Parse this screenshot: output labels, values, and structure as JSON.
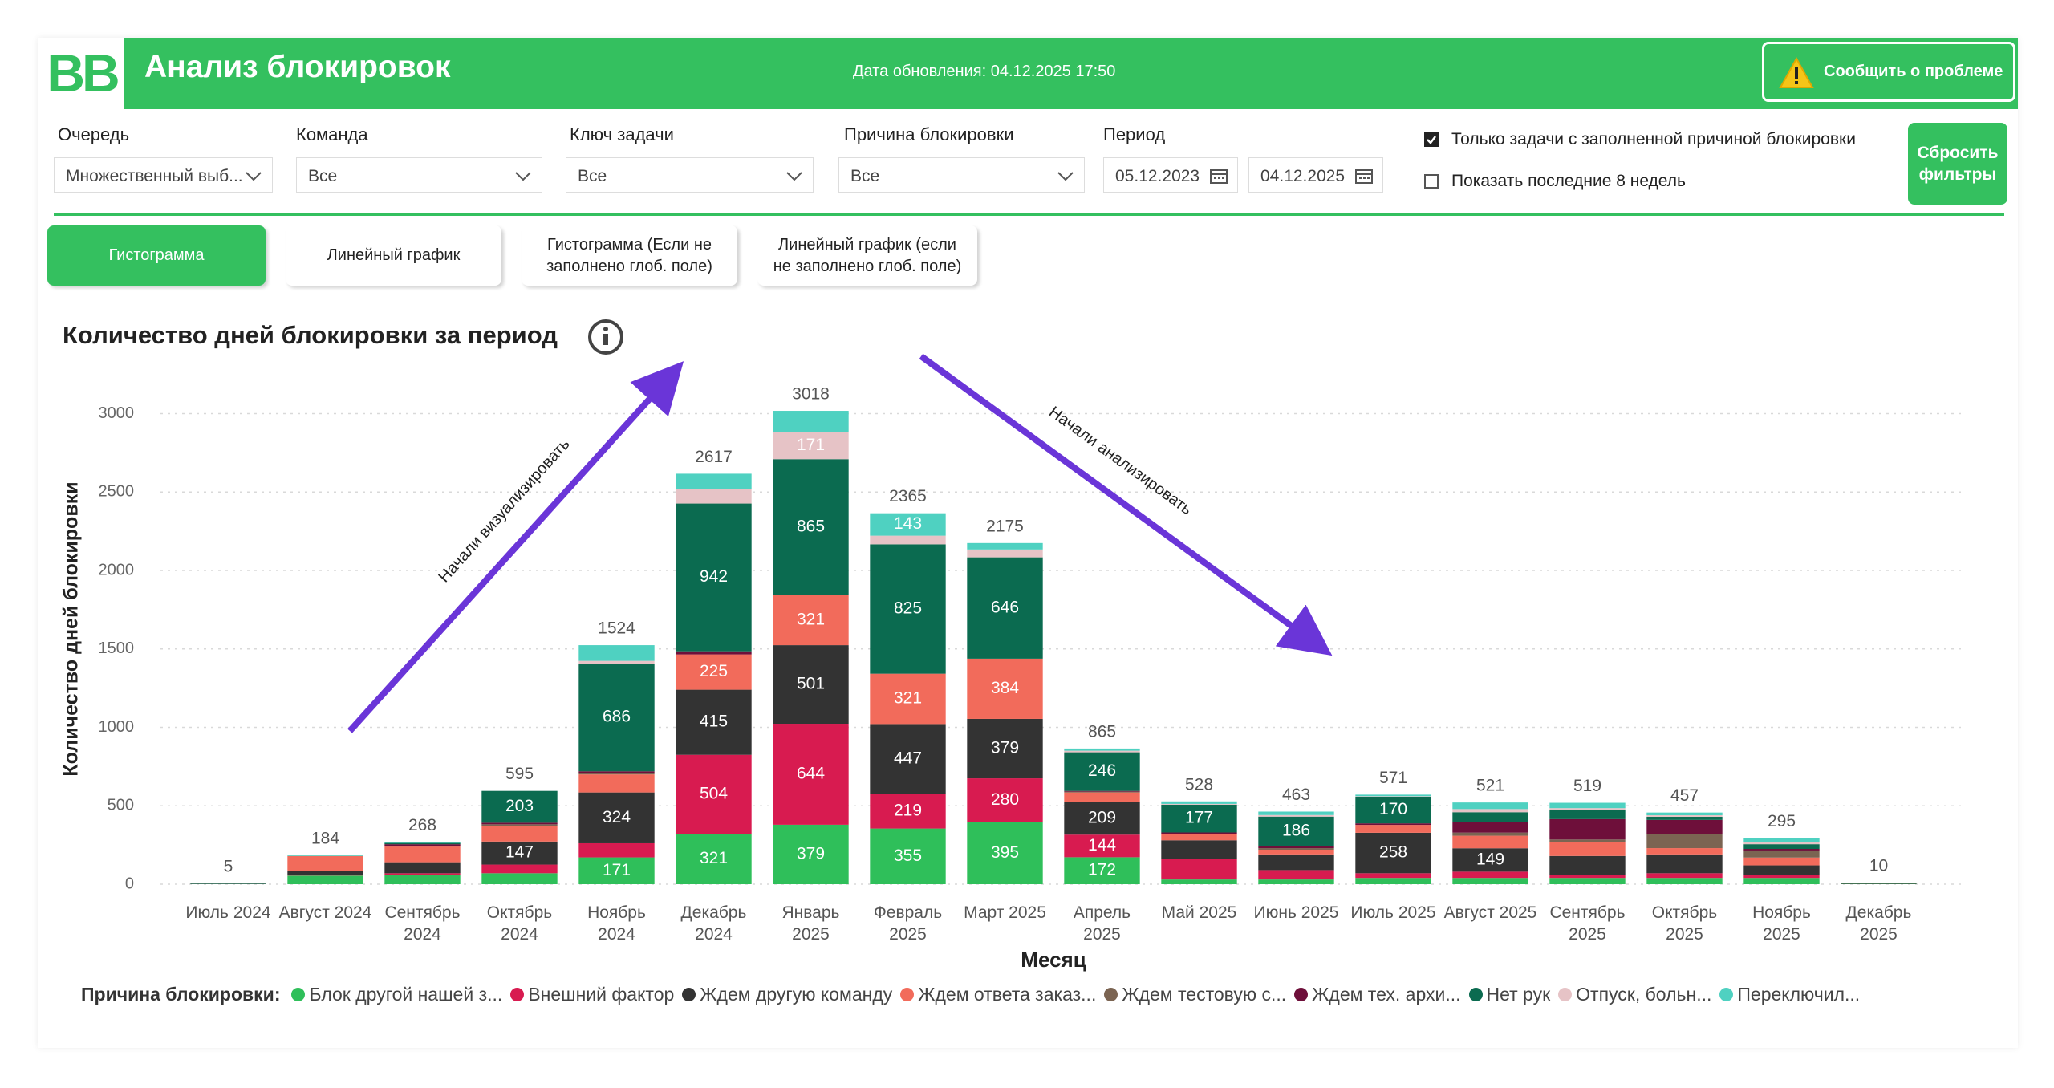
{
  "header": {
    "logo": "BB",
    "title": "Анализ блокировок",
    "updated": "Дата обновления: 04.12.2025 17:50",
    "report_button": "Сообщить о проблеме"
  },
  "filters": [
    {
      "label": "Очередь",
      "value": "Множественный выб..."
    },
    {
      "label": "Команда",
      "value": "Все"
    },
    {
      "label": "Ключ задачи",
      "value": "Все"
    },
    {
      "label": "Причина блокировки",
      "value": "Все"
    }
  ],
  "period": {
    "label": "Период",
    "from": "05.12.2023",
    "to": "04.12.2025"
  },
  "checkboxes": [
    {
      "label": "Только задачи с заполненной причиной блокировки",
      "checked": true
    },
    {
      "label": "Показать последние 8 недель",
      "checked": false
    }
  ],
  "reset_button": "Сбросить фильтры",
  "tabs": [
    {
      "label": "Гистограмма",
      "active": true
    },
    {
      "label": "Линейный график",
      "active": false
    },
    {
      "label": "Гистограмма (Если не заполнено глоб. поле)",
      "active": false
    },
    {
      "label": "Линейный график (если не заполнено глоб. поле)",
      "active": false
    }
  ],
  "chart_data": {
    "type": "stacked_bar",
    "title": "Количество дней блокировки за период",
    "y_label": "Количество дней блокировки",
    "x_label": "Месяц",
    "legend_title": "Причина блокировки:",
    "categories": [
      "Июль 2024",
      "Август 2024",
      "Сентябрь 2024",
      "Октябрь 2024",
      "Ноябрь 2024",
      "Декабрь 2024",
      "Январь 2025",
      "Февраль 2025",
      "Март 2025",
      "Апрель 2025",
      "Май 2025",
      "Июнь 2025",
      "Июль 2025",
      "Август 2025",
      "Сентябрь 2025",
      "Октябрь 2025",
      "Ноябрь 2025",
      "Декабрь 2025"
    ],
    "series": [
      {
        "name": "Блок другой нашей з...",
        "color": "#2fbf5a",
        "values": [
          1,
          55,
          60,
          70,
          171,
          321,
          379,
          355,
          395,
          172,
          30,
          30,
          40,
          40,
          40,
          40,
          40,
          2
        ]
      },
      {
        "name": "Внешний фактор",
        "color": "#d81b50",
        "values": [
          0,
          5,
          10,
          55,
          90,
          504,
          644,
          219,
          280,
          144,
          130,
          60,
          30,
          40,
          20,
          30,
          20,
          0
        ]
      },
      {
        "name": "Ждем другую команду",
        "color": "#333333",
        "values": [
          2,
          25,
          70,
          147,
          324,
          415,
          501,
          447,
          379,
          209,
          120,
          100,
          258,
          149,
          120,
          120,
          60,
          3
        ]
      },
      {
        "name": "Ждем ответа заказ...",
        "color": "#f26b5b",
        "values": [
          0,
          95,
          100,
          100,
          115,
          225,
          321,
          321,
          384,
          60,
          40,
          30,
          50,
          80,
          90,
          40,
          50,
          0
        ]
      },
      {
        "name": "Ждем тестовую с...",
        "color": "#7b6452",
        "values": [
          0,
          0,
          0,
          10,
          10,
          0,
          0,
          0,
          0,
          5,
          0,
          10,
          0,
          20,
          15,
          90,
          45,
          0
        ]
      },
      {
        "name": "Ждем тех. архи...",
        "color": "#6e0f3a",
        "values": [
          0,
          0,
          15,
          10,
          10,
          20,
          0,
          0,
          0,
          5,
          10,
          15,
          10,
          70,
          130,
          90,
          10,
          0
        ]
      },
      {
        "name": "Нет рук",
        "color": "#0b6b50",
        "values": [
          2,
          0,
          8,
          203,
          686,
          942,
          865,
          825,
          646,
          246,
          177,
          186,
          170,
          60,
          60,
          20,
          30,
          5
        ]
      },
      {
        "name": "Отпуск, больн...",
        "color": "#e6c3c6",
        "values": [
          0,
          0,
          0,
          0,
          18,
          90,
          171,
          55,
          50,
          10,
          5,
          10,
          3,
          20,
          10,
          10,
          15,
          0
        ]
      },
      {
        "name": "Переключил...",
        "color": "#4fd1c1",
        "values": [
          0,
          4,
          5,
          0,
          100,
          100,
          137,
          143,
          41,
          14,
          16,
          22,
          10,
          42,
          34,
          17,
          25,
          0
        ]
      }
    ],
    "totals": [
      5,
      184,
      268,
      595,
      1524,
      2617,
      3018,
      2365,
      2175,
      865,
      528,
      463,
      571,
      521,
      519,
      457,
      295,
      10
    ],
    "ylim": [
      0,
      3100
    ],
    "yticks": [
      0,
      500,
      1000,
      1500,
      2000,
      2500,
      3000
    ],
    "grid": true,
    "annotations": [
      {
        "text": "Начали визуализировать"
      },
      {
        "text": "Начали анализировать"
      }
    ]
  }
}
